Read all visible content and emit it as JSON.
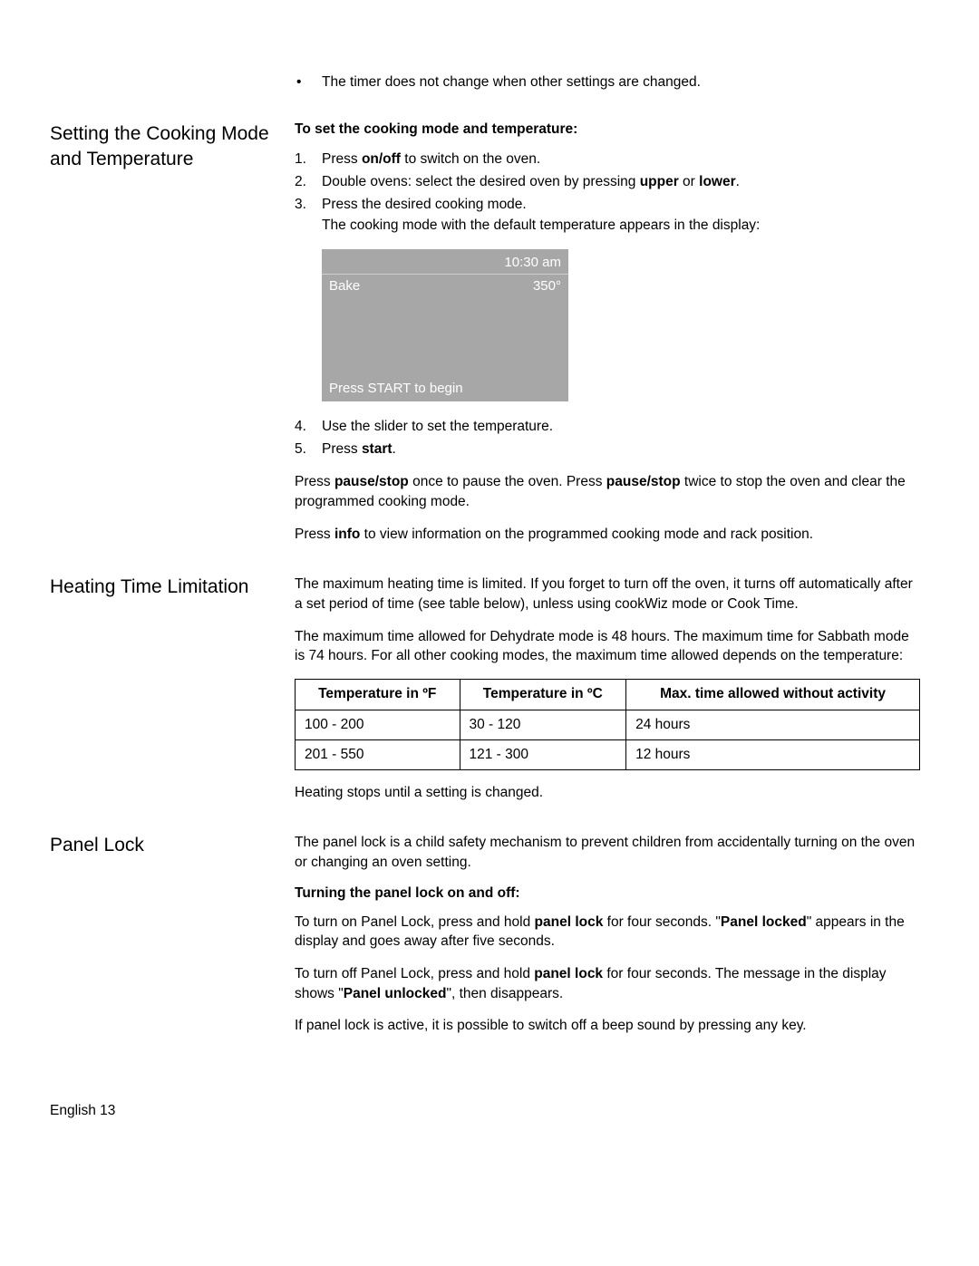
{
  "top_bullet": "The timer does not change when other settings are changed.",
  "section1": {
    "heading": "Setting the Cooking Mode and Temperature",
    "subhead": "To set the cooking mode and temperature:",
    "step1_pre": "Press ",
    "step1_b": "on/off",
    "step1_post": " to switch on the oven.",
    "step2_pre": "Double ovens: select the desired oven by pressing ",
    "step2_b1": "upper",
    "step2_mid": " or ",
    "step2_b2": "lower",
    "step2_post": ".",
    "step3_line1": "Press the desired cooking mode.",
    "step3_line2": "The cooking mode with the default temperature appears in the display:",
    "display": {
      "time": "10:30 am",
      "mode": "Bake",
      "temp": "350°",
      "prompt": "Press START to begin",
      "bg_color": "#a7a7a7",
      "text_color": "#ffffff"
    },
    "step4": "Use the slider to set the temperature.",
    "step5_pre": "Press ",
    "step5_b": "start",
    "step5_post": ".",
    "pause_pre": "Press ",
    "pause_b1": "pause/stop",
    "pause_mid1": " once to pause the oven. Press ",
    "pause_b2": "pause/stop",
    "pause_post": " twice to stop the oven and clear the programmed cooking mode.",
    "info_pre": "Press ",
    "info_b": "info",
    "info_post": " to view information on the programmed cooking mode and rack position."
  },
  "section2": {
    "heading": "Heating Time Limitation",
    "para1": "The maximum heating time is limited. If you forget to turn off the oven, it turns off automatically after a set period of time (see table below), unless using cookWiz mode or Cook Time.",
    "para2": "The maximum time allowed for Dehydrate mode is 48 hours. The maximum time for Sabbath mode is 74 hours. For all other cooking modes, the maximum time allowed depends on the temperature:",
    "table": {
      "headers": [
        "Temperature in ºF",
        "Temperature in ºC",
        "Max. time allowed without activity"
      ],
      "rows": [
        [
          "100 - 200",
          "30 - 120",
          "24 hours"
        ],
        [
          "201 - 550",
          "121 - 300",
          "12 hours"
        ]
      ]
    },
    "para3": "Heating stops until a setting is changed."
  },
  "section3": {
    "heading": "Panel Lock",
    "para1": "The panel lock is a child safety mechanism to prevent children from accidentally turning on the oven or changing an oven setting.",
    "subhead": "Turning the panel lock on and off:",
    "p2_pre": "To turn on Panel Lock, press and hold ",
    "p2_b1": "panel lock",
    "p2_mid": " for four seconds. \"",
    "p2_b2": "Panel locked",
    "p2_post": "\" appears in the display and goes away after five seconds.",
    "p3_pre": "To turn off Panel Lock, press and hold ",
    "p3_b1": "panel lock",
    "p3_mid": " for four seconds. The message in the display shows \"",
    "p3_b2": "Panel unlocked",
    "p3_post": "\", then disappears.",
    "para4": "If panel lock is active, it is possible to switch off a beep sound by pressing any key."
  },
  "footer": "English 13"
}
